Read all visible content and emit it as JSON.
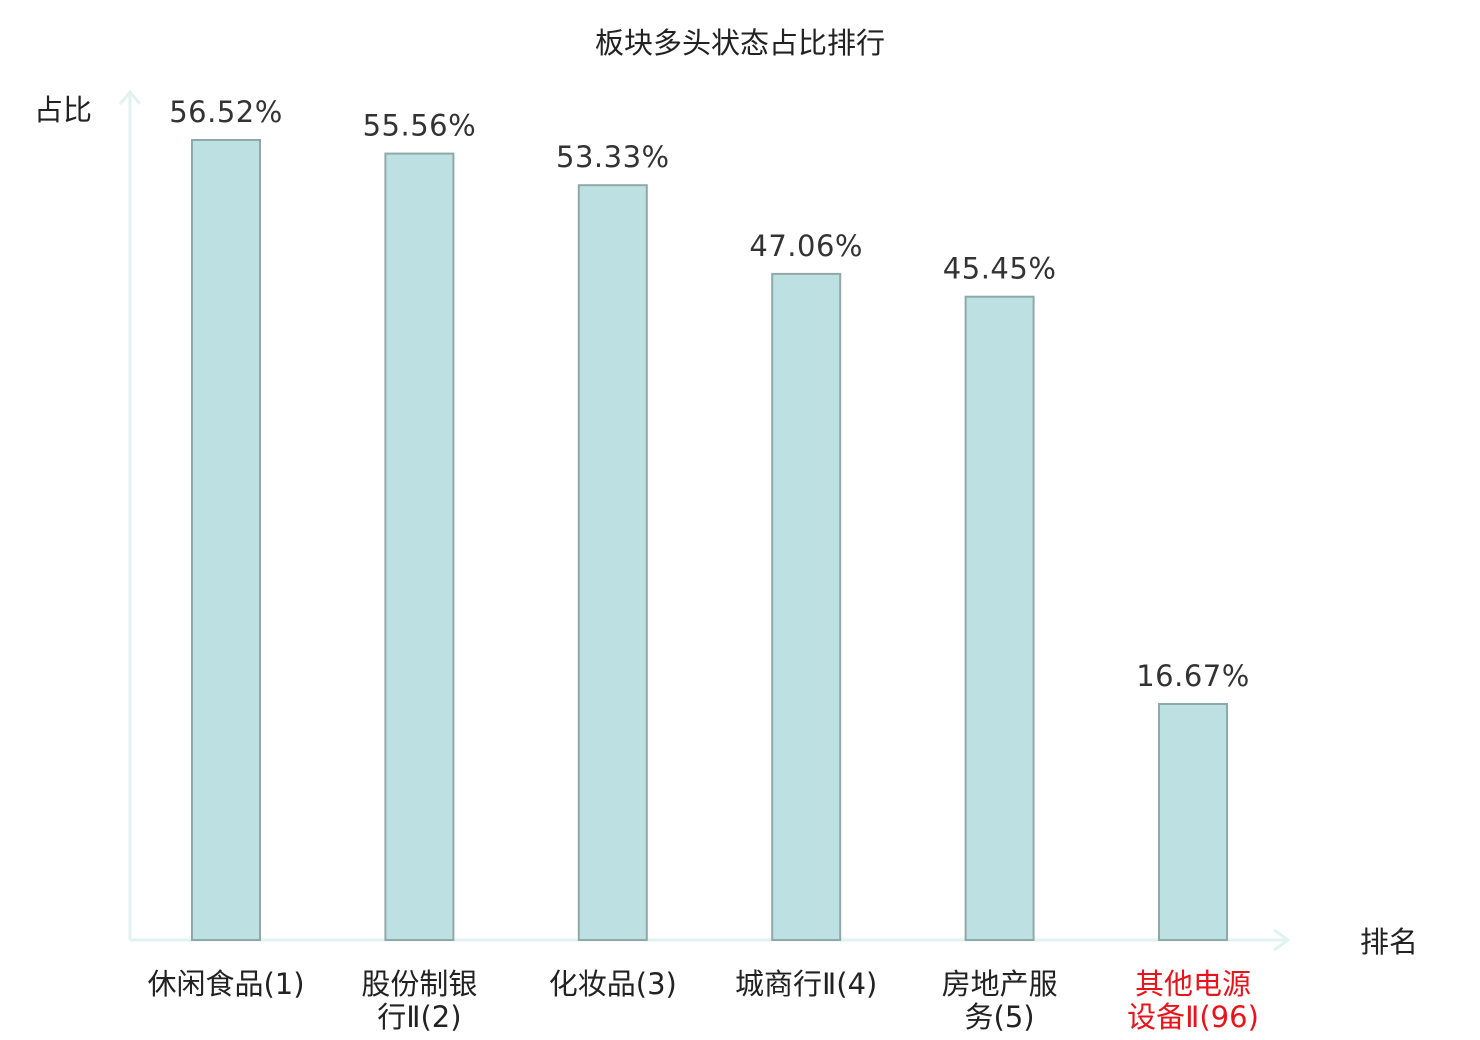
{
  "chart_data": {
    "type": "bar",
    "title": "板块多头状态占比排行",
    "xlabel": "排名",
    "ylabel": "占比",
    "categories": [
      [
        "休闲食品(1)"
      ],
      [
        "股份制银",
        "行Ⅱ(2)"
      ],
      [
        "化妆品(3)"
      ],
      [
        "城商行Ⅱ(4)"
      ],
      [
        "房地产服",
        "务(5)"
      ],
      [
        "其他电源",
        "设备Ⅱ(96)"
      ]
    ],
    "values": [
      56.52,
      55.56,
      53.33,
      47.06,
      45.45,
      16.67
    ],
    "value_labels": [
      "56.52%",
      "55.56%",
      "53.33%",
      "47.06%",
      "45.45%",
      "16.67%"
    ],
    "ylim": [
      0,
      56.52
    ],
    "grid": false,
    "colors": {
      "bar_fill": "#bde0e3",
      "bar_stroke": "#8fa9ab",
      "axis": "#e2f2ef",
      "label_default": "#222222",
      "label_highlight": "#e8141b"
    },
    "highlight_index": 5
  }
}
